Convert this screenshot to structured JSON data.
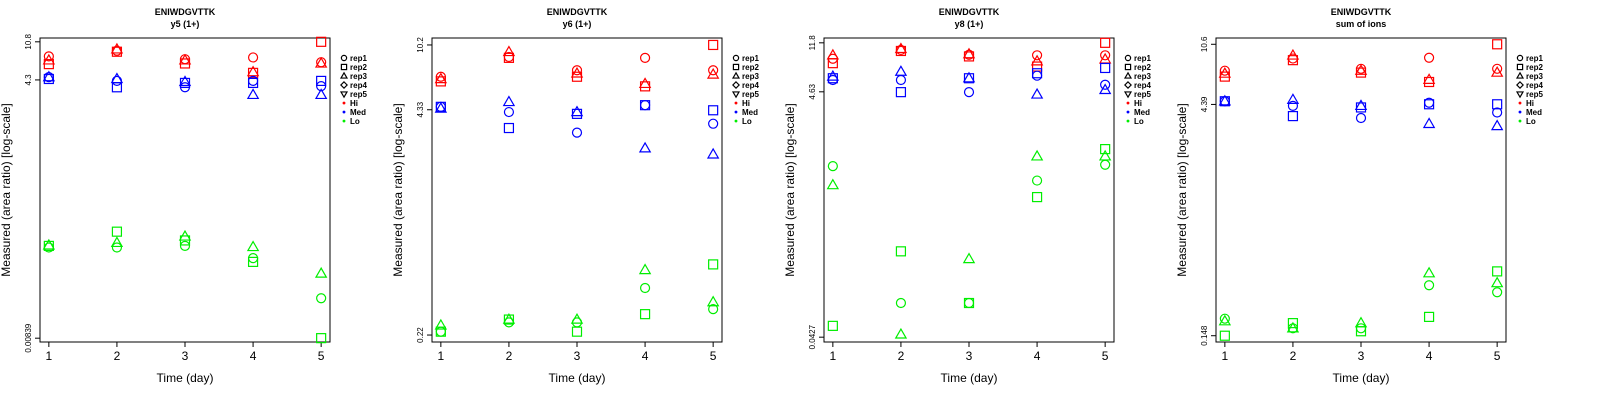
{
  "colors": {
    "Hi": "#ff0000",
    "Med": "#0000ff",
    "Lo": "#00ee00",
    "axis": "#000000"
  },
  "legend_entries": [
    {
      "label": "rep1",
      "symbol": "circle"
    },
    {
      "label": "rep2",
      "symbol": "square"
    },
    {
      "label": "rep3",
      "symbol": "triangle-up"
    },
    {
      "label": "rep4",
      "symbol": "diamond"
    },
    {
      "label": "rep5",
      "symbol": "triangle-down"
    },
    {
      "label": "Hi",
      "symbol": "dot",
      "color_key": "Hi"
    },
    {
      "label": "Med",
      "symbol": "dot",
      "color_key": "Med"
    },
    {
      "label": "Lo",
      "symbol": "dot",
      "color_key": "Lo"
    }
  ],
  "chart_data": [
    {
      "type": "scatter",
      "title": "ENIWDGVTTK",
      "subtitle": "y5 (1+)",
      "xlabel": "Time (day)",
      "ylabel": "Measured (area ratio) [log-scale]",
      "y_scale": "log",
      "x_ticks": [
        "1",
        "2",
        "3",
        "4",
        "5"
      ],
      "y_ticks": [
        "0.00839",
        "4.3",
        "10.8"
      ],
      "ylim": [
        0.00839,
        10.8
      ],
      "legend_position": "right",
      "series": [
        {
          "group": "Hi",
          "rep": "rep1",
          "symbol": "circle",
          "x": [
            1,
            2,
            3,
            4,
            5
          ],
          "y": [
            7.6,
            8.7,
            7.1,
            7.4,
            6.6
          ]
        },
        {
          "group": "Hi",
          "rep": "rep2",
          "symbol": "square",
          "x": [
            1,
            2,
            3,
            4,
            5
          ],
          "y": [
            6.3,
            8.5,
            6.4,
            5.1,
            10.8
          ]
        },
        {
          "group": "Hi",
          "rep": "rep3",
          "symbol": "triangle-up",
          "x": [
            1,
            2,
            3,
            4,
            5
          ],
          "y": [
            6.9,
            9.0,
            6.9,
            5.2,
            6.4
          ]
        },
        {
          "group": "Med",
          "rep": "rep1",
          "symbol": "circle",
          "x": [
            1,
            2,
            3,
            4,
            5
          ],
          "y": [
            4.6,
            4.2,
            3.6,
            4.2,
            3.7
          ]
        },
        {
          "group": "Med",
          "rep": "rep2",
          "symbol": "square",
          "x": [
            1,
            2,
            3,
            4,
            5
          ],
          "y": [
            4.4,
            3.6,
            4.0,
            4.0,
            4.2
          ]
        },
        {
          "group": "Med",
          "rep": "rep3",
          "symbol": "triangle-up",
          "x": [
            1,
            2,
            3,
            4,
            5
          ],
          "y": [
            4.6,
            4.4,
            4.1,
            3.0,
            3.0
          ]
        },
        {
          "group": "Lo",
          "rep": "rep1",
          "symbol": "circle",
          "x": [
            1,
            2,
            3,
            4,
            5
          ],
          "y": [
            0.075,
            0.075,
            0.078,
            0.058,
            0.022
          ]
        },
        {
          "group": "Lo",
          "rep": "rep2",
          "symbol": "square",
          "x": [
            1,
            2,
            3,
            4,
            5
          ],
          "y": [
            0.078,
            0.11,
            0.089,
            0.053,
            0.0084
          ]
        },
        {
          "group": "Lo",
          "rep": "rep3",
          "symbol": "triangle-up",
          "x": [
            1,
            2,
            3,
            4,
            5
          ],
          "y": [
            0.079,
            0.084,
            0.098,
            0.076,
            0.04
          ]
        }
      ]
    },
    {
      "type": "scatter",
      "title": "ENIWDGVTTK",
      "subtitle": "y6 (1+)",
      "xlabel": "Time (day)",
      "ylabel": "Measured (area ratio) [log-scale]",
      "y_scale": "log",
      "x_ticks": [
        "1",
        "2",
        "3",
        "4",
        "5"
      ],
      "y_ticks": [
        "0.22",
        "4.33",
        "10.2"
      ],
      "ylim": [
        0.22,
        10.2
      ],
      "legend_position": "right",
      "series": [
        {
          "group": "Hi",
          "rep": "rep1",
          "symbol": "circle",
          "x": [
            1,
            2,
            3,
            4,
            5
          ],
          "y": [
            6.7,
            8.7,
            7.3,
            8.6,
            7.3
          ]
        },
        {
          "group": "Hi",
          "rep": "rep2",
          "symbol": "square",
          "x": [
            1,
            2,
            3,
            4,
            5
          ],
          "y": [
            6.3,
            8.6,
            6.7,
            5.9,
            10.2
          ]
        },
        {
          "group": "Hi",
          "rep": "rep3",
          "symbol": "triangle-up",
          "x": [
            1,
            2,
            3,
            4,
            5
          ],
          "y": [
            6.5,
            9.3,
            7.0,
            6.1,
            6.9
          ]
        },
        {
          "group": "Med",
          "rep": "rep1",
          "symbol": "circle",
          "x": [
            1,
            2,
            3,
            4,
            5
          ],
          "y": [
            4.5,
            4.2,
            3.2,
            4.6,
            3.6
          ]
        },
        {
          "group": "Med",
          "rep": "rep2",
          "symbol": "square",
          "x": [
            1,
            2,
            3,
            4,
            5
          ],
          "y": [
            4.5,
            3.4,
            4.1,
            4.6,
            4.3
          ]
        },
        {
          "group": "Med",
          "rep": "rep3",
          "symbol": "triangle-up",
          "x": [
            1,
            2,
            3,
            4,
            5
          ],
          "y": [
            4.4,
            4.8,
            4.2,
            2.6,
            2.4
          ]
        },
        {
          "group": "Lo",
          "rep": "rep1",
          "symbol": "circle",
          "x": [
            1,
            2,
            3,
            4,
            5
          ],
          "y": [
            0.23,
            0.26,
            0.26,
            0.41,
            0.31
          ]
        },
        {
          "group": "Lo",
          "rep": "rep2",
          "symbol": "square",
          "x": [
            1,
            2,
            3,
            4,
            5
          ],
          "y": [
            0.23,
            0.27,
            0.23,
            0.29,
            0.56
          ]
        },
        {
          "group": "Lo",
          "rep": "rep3",
          "symbol": "triangle-up",
          "x": [
            1,
            2,
            3,
            4,
            5
          ],
          "y": [
            0.25,
            0.27,
            0.27,
            0.52,
            0.34
          ]
        }
      ]
    },
    {
      "type": "scatter",
      "title": "ENIWDGVTTK",
      "subtitle": "y8 (1+)",
      "xlabel": "Time (day)",
      "ylabel": "Measured (area ratio) [log-scale]",
      "y_scale": "log",
      "x_ticks": [
        "1",
        "2",
        "3",
        "4",
        "5"
      ],
      "y_ticks": [
        "0.0427",
        "4.63",
        "11.8"
      ],
      "ylim": [
        0.0427,
        11.8
      ],
      "legend_position": "right",
      "series": [
        {
          "group": "Hi",
          "rep": "rep1",
          "symbol": "circle",
          "x": [
            1,
            2,
            3,
            4,
            5
          ],
          "y": [
            8.7,
            10.3,
            9.4,
            9.3,
            9.3
          ]
        },
        {
          "group": "Hi",
          "rep": "rep2",
          "symbol": "square",
          "x": [
            1,
            2,
            3,
            4,
            5
          ],
          "y": [
            8.0,
            10.1,
            9.1,
            7.5,
            11.8
          ]
        },
        {
          "group": "Hi",
          "rep": "rep3",
          "symbol": "triangle-up",
          "x": [
            1,
            2,
            3,
            4,
            5
          ],
          "y": [
            9.3,
            10.5,
            9.5,
            8.3,
            8.6
          ]
        },
        {
          "group": "Med",
          "rep": "rep1",
          "symbol": "circle",
          "x": [
            1,
            2,
            3,
            4,
            5
          ],
          "y": [
            5.8,
            5.8,
            4.6,
            6.3,
            5.3
          ]
        },
        {
          "group": "Med",
          "rep": "rep2",
          "symbol": "square",
          "x": [
            1,
            2,
            3,
            4,
            5
          ],
          "y": [
            6.0,
            4.6,
            6.0,
            6.6,
            7.3
          ]
        },
        {
          "group": "Med",
          "rep": "rep3",
          "symbol": "triangle-up",
          "x": [
            1,
            2,
            3,
            4,
            5
          ],
          "y": [
            6.2,
            6.8,
            6.0,
            4.4,
            4.8
          ]
        },
        {
          "group": "Lo",
          "rep": "rep1",
          "symbol": "circle",
          "x": [
            1,
            2,
            3,
            4,
            5
          ],
          "y": [
            1.12,
            0.082,
            0.082,
            0.85,
            1.15
          ]
        },
        {
          "group": "Lo",
          "rep": "rep2",
          "symbol": "square",
          "x": [
            1,
            2,
            3,
            4,
            5
          ],
          "y": [
            0.053,
            0.22,
            0.082,
            0.62,
            1.55
          ]
        },
        {
          "group": "Lo",
          "rep": "rep3",
          "symbol": "triangle-up",
          "x": [
            1,
            2,
            3,
            4,
            5
          ],
          "y": [
            0.78,
            0.045,
            0.19,
            1.35,
            1.35
          ]
        }
      ]
    },
    {
      "type": "scatter",
      "title": "ENIWDGVTTK",
      "subtitle": "sum of ions",
      "xlabel": "Time (day)",
      "ylabel": "Measured (area ratio) [log-scale]",
      "y_scale": "log",
      "x_ticks": [
        "1",
        "2",
        "3",
        "4",
        "5"
      ],
      "y_ticks": [
        "0.148",
        "4.39",
        "10.6"
      ],
      "ylim": [
        0.148,
        10.6
      ],
      "legend_position": "right",
      "series": [
        {
          "group": "Hi",
          "rep": "rep1",
          "symbol": "circle",
          "x": [
            1,
            2,
            3,
            4,
            5
          ],
          "y": [
            7.2,
            8.6,
            7.4,
            8.7,
            7.4
          ]
        },
        {
          "group": "Hi",
          "rep": "rep2",
          "symbol": "square",
          "x": [
            1,
            2,
            3,
            4,
            5
          ],
          "y": [
            6.6,
            8.4,
            7.0,
            6.1,
            10.6
          ]
        },
        {
          "group": "Hi",
          "rep": "rep3",
          "symbol": "triangle-up",
          "x": [
            1,
            2,
            3,
            4,
            5
          ],
          "y": [
            6.9,
            9.0,
            7.2,
            6.3,
            7.0
          ]
        },
        {
          "group": "Med",
          "rep": "rep1",
          "symbol": "circle",
          "x": [
            1,
            2,
            3,
            4,
            5
          ],
          "y": [
            4.6,
            4.3,
            3.6,
            4.5,
            3.9
          ]
        },
        {
          "group": "Med",
          "rep": "rep2",
          "symbol": "square",
          "x": [
            1,
            2,
            3,
            4,
            5
          ],
          "y": [
            4.6,
            3.7,
            4.2,
            4.4,
            4.4
          ]
        },
        {
          "group": "Med",
          "rep": "rep3",
          "symbol": "triangle-up",
          "x": [
            1,
            2,
            3,
            4,
            5
          ],
          "y": [
            4.6,
            4.7,
            4.3,
            3.3,
            3.2
          ]
        },
        {
          "group": "Lo",
          "rep": "rep1",
          "symbol": "circle",
          "x": [
            1,
            2,
            3,
            4,
            5
          ],
          "y": [
            0.19,
            0.165,
            0.165,
            0.31,
            0.28
          ]
        },
        {
          "group": "Lo",
          "rep": "rep2",
          "symbol": "square",
          "x": [
            1,
            2,
            3,
            4,
            5
          ],
          "y": [
            0.148,
            0.178,
            0.158,
            0.195,
            0.38
          ]
        },
        {
          "group": "Lo",
          "rep": "rep3",
          "symbol": "triangle-up",
          "x": [
            1,
            2,
            3,
            4,
            5
          ],
          "y": [
            0.183,
            0.165,
            0.178,
            0.37,
            0.32
          ]
        }
      ]
    }
  ]
}
